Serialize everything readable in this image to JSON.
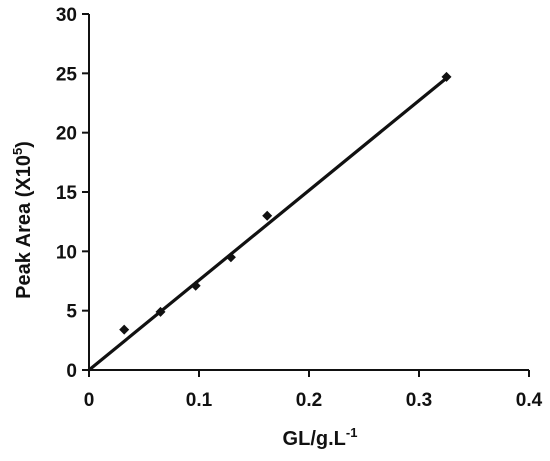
{
  "chart_data": {
    "type": "scatter",
    "xlabel": {
      "base": "GL/g.L",
      "sup": "-1"
    },
    "ylabel": {
      "base": "Peak Area (X10",
      "sup": "5",
      "close": ")"
    },
    "xlim": [
      0,
      0.4
    ],
    "ylim": [
      0,
      30
    ],
    "x_ticks": [
      0,
      0.1,
      0.2,
      0.3,
      0.4
    ],
    "x_tick_labels": [
      "0",
      "0.1",
      "0.2",
      "0.3",
      "0.4"
    ],
    "y_ticks": [
      0,
      5,
      10,
      15,
      20,
      25,
      30
    ],
    "y_tick_labels": [
      "0",
      "5",
      "10",
      "15",
      "20",
      "25",
      "30"
    ],
    "grid": false,
    "series": [
      {
        "marker": "diamond",
        "points": [
          {
            "x": 0.032,
            "y": 3.4
          },
          {
            "x": 0.065,
            "y": 4.9
          },
          {
            "x": 0.097,
            "y": 7.1
          },
          {
            "x": 0.129,
            "y": 9.5
          },
          {
            "x": 0.162,
            "y": 13.0
          },
          {
            "x": 0.325,
            "y": 24.7
          }
        ]
      }
    ],
    "trendline": {
      "x": [
        0,
        0.325
      ],
      "y": [
        0,
        24.6
      ]
    },
    "colors": {
      "marker": "#111111",
      "line": "#111111",
      "axis": "#111111"
    }
  }
}
